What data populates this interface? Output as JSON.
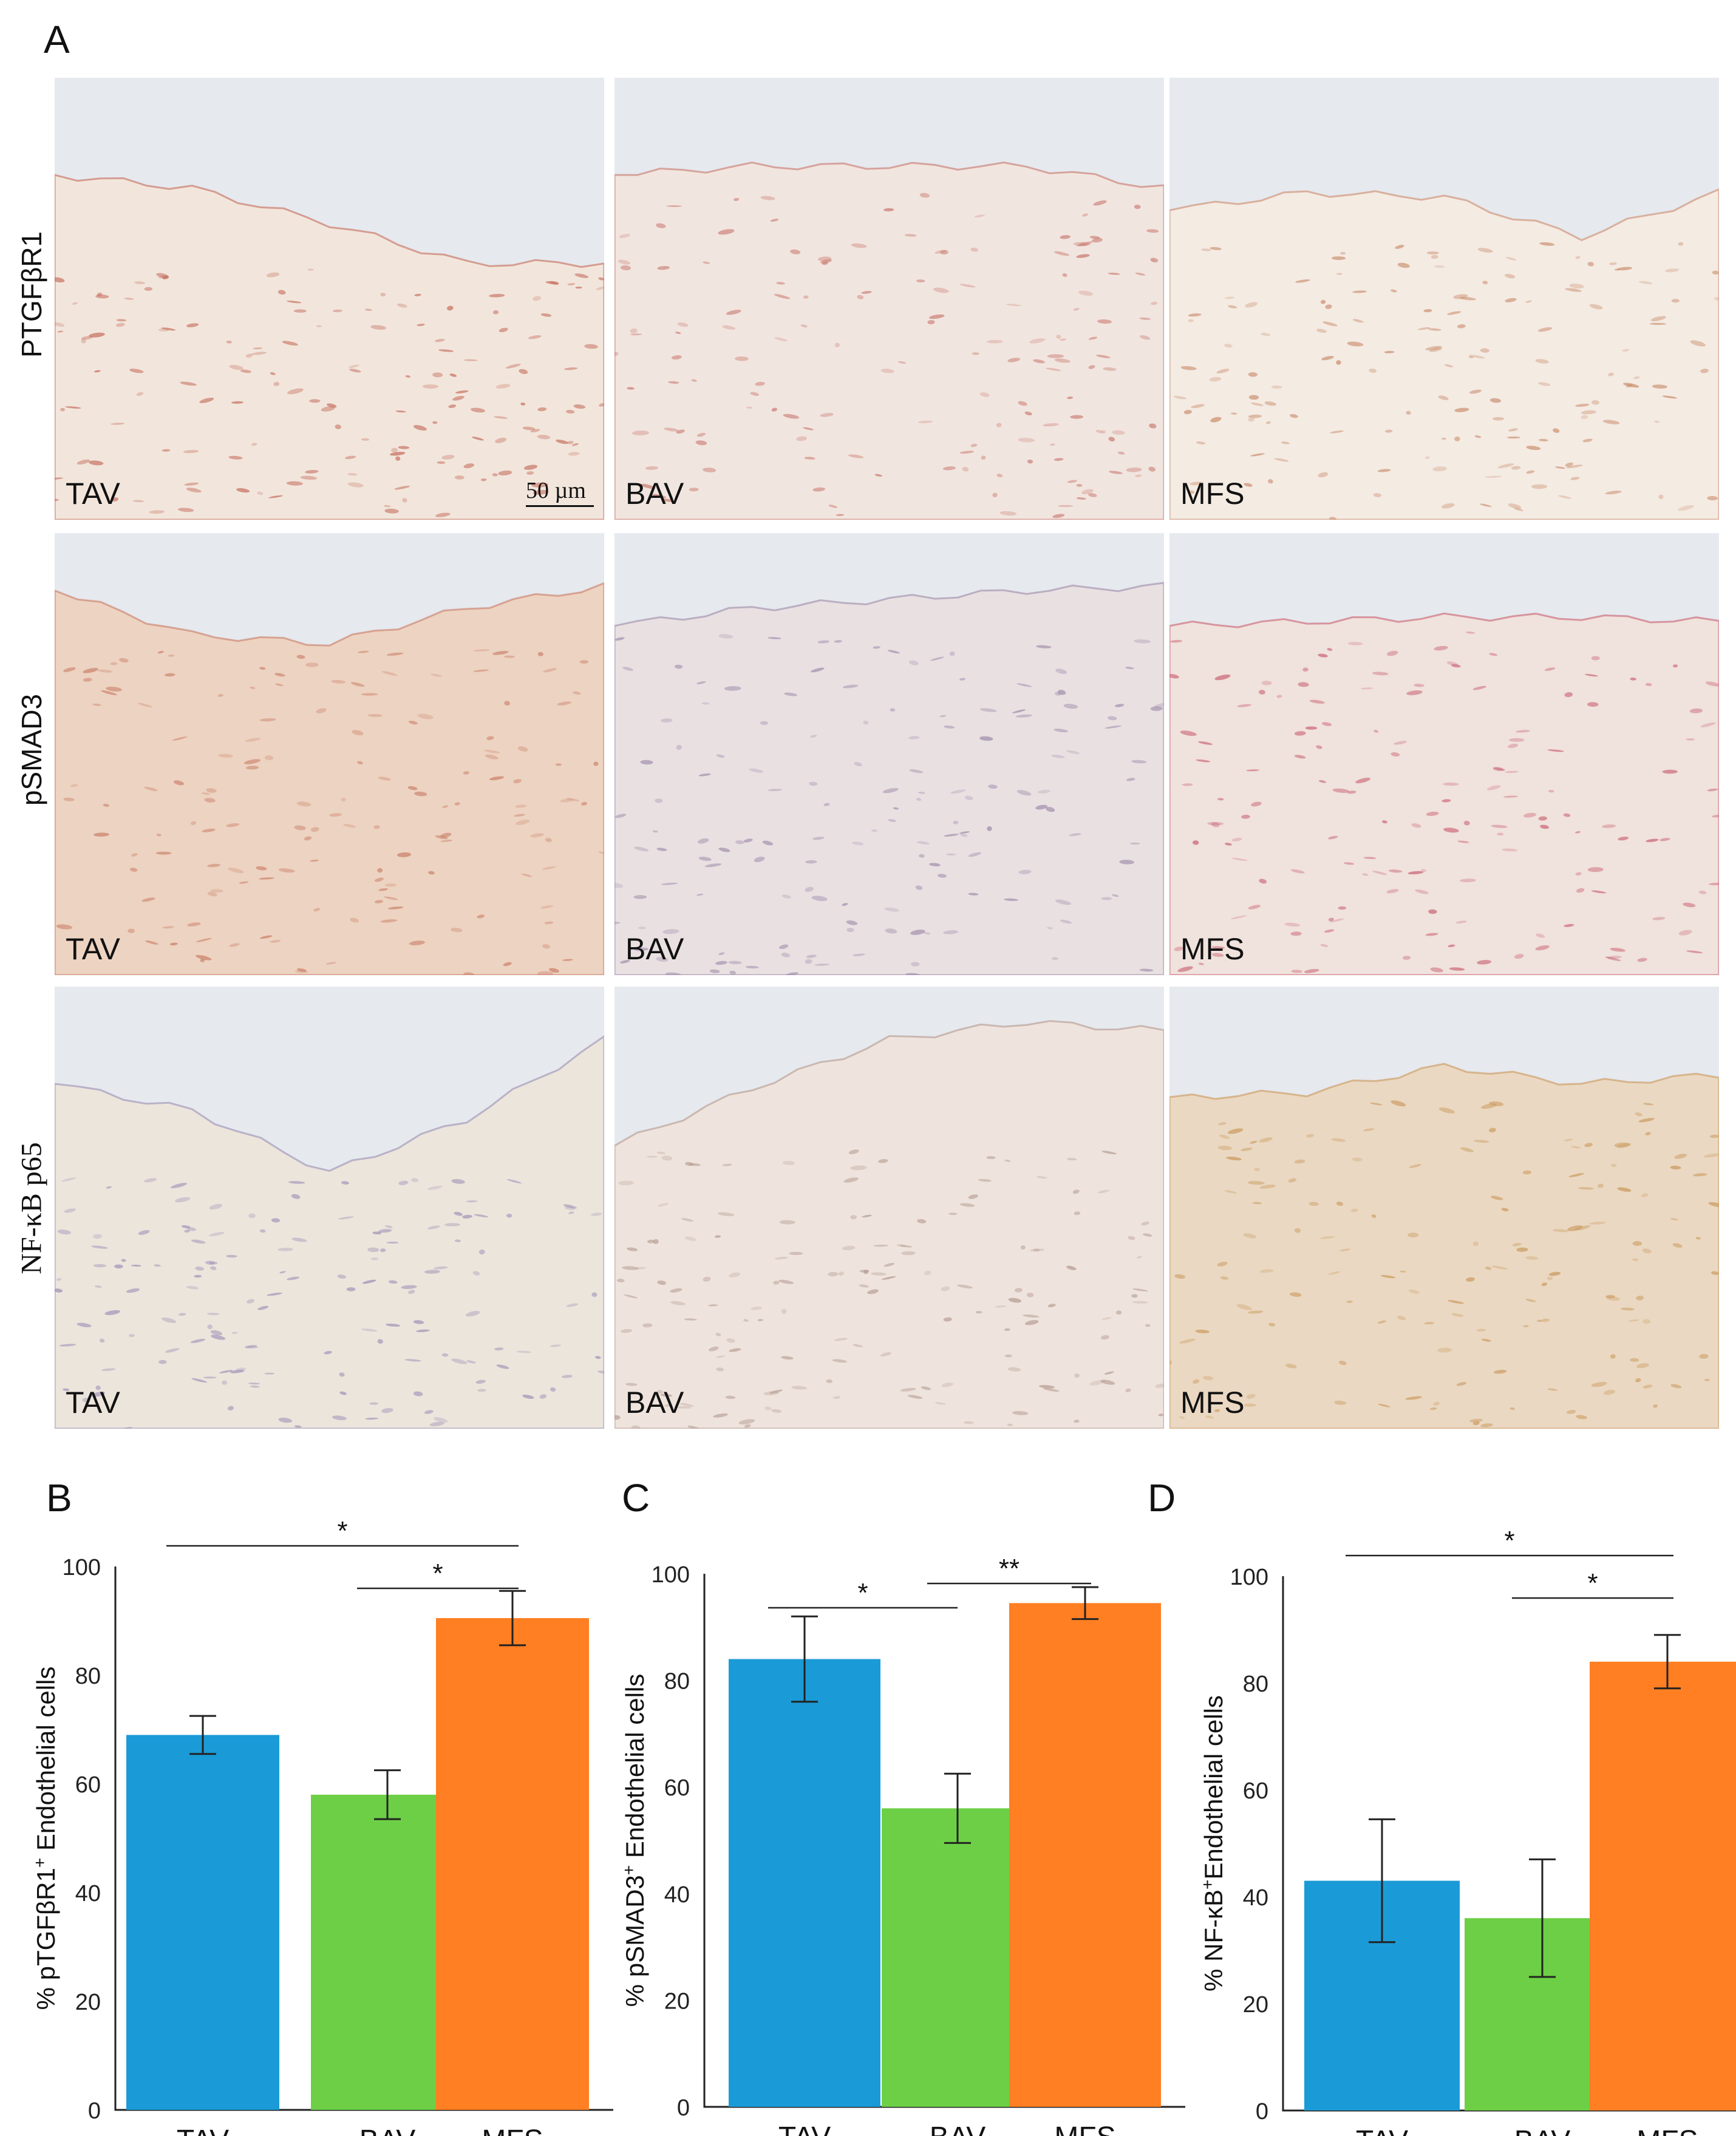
{
  "panel_a": {
    "letter": "A",
    "rows": [
      {
        "label": "PTGFβR1",
        "groups": [
          "TAV",
          "BAV",
          "MFS"
        ]
      },
      {
        "label": "pSMAD3",
        "groups": [
          "TAV",
          "BAV",
          "MFS"
        ]
      },
      {
        "label": "NF-κB p65",
        "groups": [
          "TAV",
          "BAV",
          "MFS"
        ]
      }
    ],
    "scale_bar": "50 µm"
  },
  "chart_data": [
    {
      "letter": "B",
      "type": "bar",
      "categories": [
        "TAV",
        "BAV",
        "MFS"
      ],
      "values": [
        69,
        58,
        90.5
      ],
      "errors": [
        3.5,
        4.5,
        5
      ],
      "colors": [
        "#1a9bd7",
        "#6dcf45",
        "#ff7f22"
      ],
      "ylabel_prefix": "% pTGFβR1",
      "ylabel_sup": "+",
      "ylabel_suffix": " Endothelial cells",
      "ylim": [
        0,
        100
      ],
      "yticks": [
        0,
        20,
        40,
        60,
        80,
        100
      ],
      "significance": [
        {
          "from": 0,
          "to": 2,
          "label": "*"
        },
        {
          "from": 1,
          "to": 2,
          "label": "*"
        }
      ]
    },
    {
      "letter": "C",
      "type": "bar",
      "categories": [
        "TAV",
        "BAV",
        "MFS"
      ],
      "values": [
        84,
        56,
        94.5
      ],
      "errors": [
        8,
        6.5,
        3
      ],
      "colors": [
        "#1a9bd7",
        "#6dcf45",
        "#ff7f22"
      ],
      "ylabel_prefix": "% pSMAD3",
      "ylabel_sup": "+",
      "ylabel_suffix": " Endothelial cells",
      "ylim": [
        0,
        100
      ],
      "yticks": [
        0,
        20,
        40,
        60,
        80,
        100
      ],
      "significance": [
        {
          "from": 0,
          "to": 1,
          "label": "*"
        },
        {
          "from": 1,
          "to": 2,
          "label": "**"
        }
      ]
    },
    {
      "letter": "D",
      "type": "bar",
      "categories": [
        "TAV",
        "BAV",
        "MFS"
      ],
      "values": [
        43,
        36,
        84
      ],
      "errors": [
        11.5,
        11,
        5
      ],
      "colors": [
        "#1a9bd7",
        "#6dcf45",
        "#ff7f22"
      ],
      "ylabel_prefix": "% NF-κB",
      "ylabel_sup": "+",
      "ylabel_suffix": "Endothelial cells",
      "ylim": [
        0,
        100
      ],
      "yticks": [
        0,
        20,
        40,
        60,
        80,
        100
      ],
      "significance": [
        {
          "from": 0,
          "to": 2,
          "label": "*"
        },
        {
          "from": 1,
          "to": 2,
          "label": "*"
        }
      ]
    }
  ]
}
